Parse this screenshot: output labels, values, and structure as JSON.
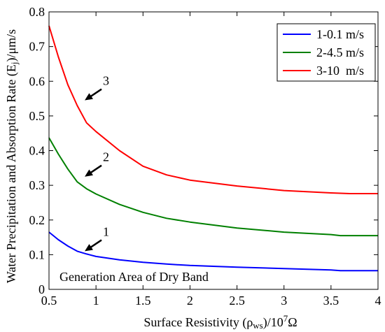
{
  "chart_data": {
    "type": "line",
    "xlabel_parts": {
      "pre": "Surface Resistivity (ρ",
      "sub": "ws",
      "mid": ")/10",
      "sup": "7",
      "post": "Ω"
    },
    "ylabel_parts": {
      "pre": "Water Precipitation and Absorption Rate (E",
      "sub": "j",
      "post": ")/μm/s"
    },
    "xlim": [
      0.5,
      4
    ],
    "ylim": [
      0,
      0.8
    ],
    "xticks": [
      "0.5",
      "1",
      "1.5",
      "2",
      "2.5",
      "3",
      "3.5",
      "4"
    ],
    "yticks": [
      "0",
      "0.1",
      "0.2",
      "0.3",
      "0.4",
      "0.5",
      "0.6",
      "0.7",
      "0.8"
    ],
    "grid": false,
    "legend_position": "top-right",
    "x": [
      0.5,
      0.6,
      0.7,
      0.8,
      0.9,
      1.0,
      1.25,
      1.5,
      1.75,
      2.0,
      2.5,
      3.0,
      3.5,
      3.6,
      3.7,
      4.0
    ],
    "series": [
      {
        "name": "1-0.1 m/s",
        "color": "#0000ff",
        "values": [
          0.165,
          0.143,
          0.125,
          0.11,
          0.102,
          0.095,
          0.085,
          0.078,
          0.073,
          0.069,
          0.064,
          0.06,
          0.056,
          0.054,
          0.054,
          0.054
        ]
      },
      {
        "name": "2-4.5 m/s",
        "color": "#008000",
        "values": [
          0.437,
          0.39,
          0.347,
          0.31,
          0.29,
          0.275,
          0.245,
          0.222,
          0.205,
          0.194,
          0.177,
          0.165,
          0.158,
          0.155,
          0.155,
          0.155
        ]
      },
      {
        "name": "3-10  m/s",
        "color": "#ff0000",
        "values": [
          0.76,
          0.67,
          0.59,
          0.53,
          0.48,
          0.455,
          0.4,
          0.355,
          0.33,
          0.315,
          0.298,
          0.285,
          0.278,
          0.277,
          0.276,
          0.276
        ]
      }
    ],
    "annotations": [
      {
        "label": "1",
        "x": 0.88,
        "y": 0.11
      },
      {
        "label": "2",
        "x": 0.88,
        "y": 0.325
      },
      {
        "label": "3",
        "x": 0.88,
        "y": 0.545
      }
    ],
    "text_annotation": "Generation Area of Dry Band"
  }
}
